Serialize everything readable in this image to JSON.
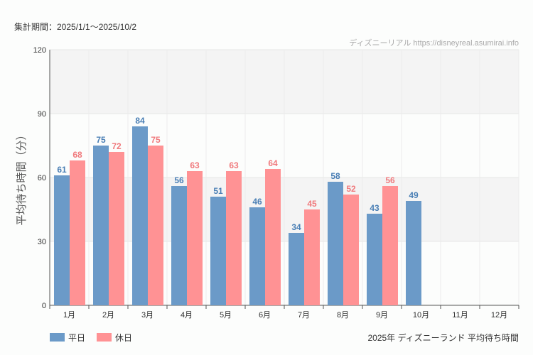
{
  "period_label": "集計期間：2025/1/1〜2025/10/2",
  "credit": "ディズニーリアル https://disneyreal.asumirai.info",
  "chart_data": {
    "type": "bar",
    "title": "2025年 ディズニーランド 平均待ち時間",
    "ylabel": "平均待ち時間（分）",
    "xlabel": "",
    "ylim": [
      0,
      120
    ],
    "yticks": [
      0,
      30,
      60,
      90,
      120
    ],
    "categories": [
      "1月",
      "2月",
      "3月",
      "4月",
      "5月",
      "6月",
      "7月",
      "8月",
      "9月",
      "10月",
      "11月",
      "12月"
    ],
    "series": [
      {
        "name": "平日",
        "color": "#6b9ac8",
        "label_color": "#4a7fb5",
        "values": [
          61,
          75,
          84,
          56,
          51,
          46,
          34,
          58,
          43,
          49,
          null,
          null
        ]
      },
      {
        "name": "休日",
        "color": "#ff9294",
        "label_color": "#f07a7d",
        "values": [
          68,
          72,
          75,
          63,
          63,
          64,
          45,
          52,
          56,
          null,
          null,
          null
        ]
      }
    ],
    "legend": "bottom-left",
    "grid": true
  }
}
